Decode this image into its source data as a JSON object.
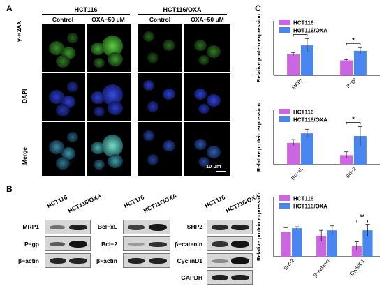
{
  "panel_a": {
    "label": "A",
    "group_left": "HCT116",
    "group_right": "HCT116/OXA",
    "col_control": "Control",
    "col_oxa": "OXA−50 μM",
    "row_h2ax": "γ-H2AX",
    "row_dapi": "DAPI",
    "row_merge": "Merge",
    "scale_bar": "10 μm"
  },
  "panel_b": {
    "label": "B",
    "lane_1": "HCT116",
    "lane_2": "HCT116/OXA",
    "blot1": [
      "MRP1",
      "P−gp",
      "β−actin"
    ],
    "blot2": [
      "Bcl−xL",
      "Bcl−2",
      "β−actin"
    ],
    "blot3": [
      "SHP2",
      "β−catenin",
      "CyclinD1",
      "GAPDH"
    ]
  },
  "panel_c": {
    "label": "C"
  },
  "colors": {
    "hct116": "#cc66e0",
    "hct116_oxa": "#4a86f0"
  },
  "chart_data": [
    {
      "type": "bar",
      "categories": [
        "MRP1",
        "P−gp"
      ],
      "series": [
        {
          "name": "HCT116",
          "values": [
            0.78,
            0.55
          ],
          "errors": [
            0.05,
            0.03
          ]
        },
        {
          "name": "HCT116/OXA",
          "values": [
            1.1,
            0.9
          ],
          "errors": [
            0.25,
            0.12
          ]
        }
      ],
      "ylabel": "Relative  protein expression",
      "ylim": [
        0,
        2.0
      ],
      "significance": [
        "*",
        "*"
      ],
      "legend": "top-left"
    },
    {
      "type": "bar",
      "categories": [
        "Bcl−xL",
        "Bcl−2"
      ],
      "series": [
        {
          "name": "HCT116",
          "values": [
            0.8,
            0.35
          ],
          "errors": [
            0.12,
            0.12
          ]
        },
        {
          "name": "HCT116/OXA",
          "values": [
            1.15,
            1.05
          ],
          "errors": [
            0.15,
            0.35
          ]
        }
      ],
      "ylabel": "Relative  protein expression",
      "ylim": [
        0,
        2.0
      ],
      "significance": [
        "",
        "*"
      ],
      "legend": "top-left"
    },
    {
      "type": "bar",
      "categories": [
        "SHP2",
        "β−catenin",
        "CyclinD1"
      ],
      "series": [
        {
          "name": "HCT116",
          "values": [
            0.82,
            0.7,
            0.35
          ],
          "errors": [
            0.15,
            0.18,
            0.15
          ]
        },
        {
          "name": "HCT116/OXA",
          "values": [
            0.95,
            0.88,
            0.88
          ],
          "errors": [
            0.05,
            0.15,
            0.2
          ]
        }
      ],
      "ylabel": "Relative  protein expression",
      "ylim": [
        0,
        2.0
      ],
      "significance": [
        "",
        "",
        "**"
      ],
      "legend": "top-left"
    }
  ]
}
